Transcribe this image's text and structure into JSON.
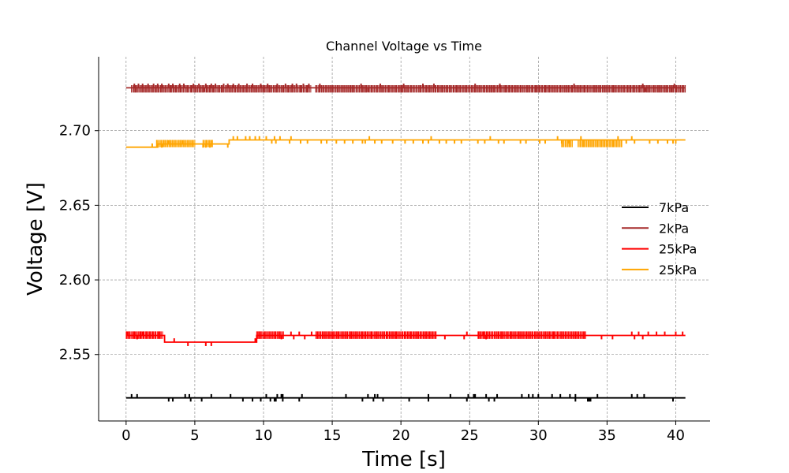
{
  "chart_data": {
    "type": "line",
    "title": "Channel Voltage vs Time",
    "xlabel": "Time [s]",
    "ylabel": "Voltage [V]",
    "xlim": [
      -2,
      42.5
    ],
    "ylim": [
      2.5055,
      2.7495
    ],
    "x_ticks": [
      0,
      5,
      10,
      15,
      20,
      25,
      30,
      35,
      40
    ],
    "x_tick_labels": [
      "0",
      "5",
      "10",
      "15",
      "20",
      "25",
      "30",
      "35",
      "40"
    ],
    "y_ticks": [
      2.55,
      2.6,
      2.65,
      2.7
    ],
    "y_tick_labels": [
      "2.55",
      "2.60",
      "2.65",
      "2.70"
    ],
    "grid": true,
    "legend_position": "right",
    "series": [
      {
        "name": "7kPa",
        "color": "#000000",
        "baseline": [
          [
            0,
            2.521
          ],
          [
            40.7,
            2.521
          ]
        ],
        "spike_delta": 0.0025,
        "spikes_up": [
          0.4,
          0.8,
          4.3,
          4.6,
          6.2,
          7.6,
          10.2,
          11.0,
          11.3,
          11.4,
          12.8,
          16.0,
          17.6,
          18.1,
          18.3,
          22.0,
          23.6,
          24.9,
          25.3,
          25.4,
          26.2,
          27.0,
          28.8,
          29.3,
          29.6,
          30.0,
          31.0,
          31.6,
          32.3,
          32.7,
          34.3,
          36.8,
          37.2,
          37.7
        ],
        "spikes_down": [
          3.1,
          3.4,
          4.7,
          5.5,
          8.5,
          9.2,
          9.8,
          10.5,
          10.8,
          10.9,
          11.4,
          12.6,
          17.2,
          18.0,
          18.7,
          20.6,
          22.0,
          24.8,
          26.4,
          26.8,
          32.7,
          33.6,
          33.7,
          33.8,
          39.8
        ]
      },
      {
        "name": "2kPa",
        "color": "#a52a2a",
        "baseline": [
          [
            0,
            2.7287
          ],
          [
            40.7,
            2.7287
          ]
        ],
        "spike_delta": 0.0028,
        "dense_ranges": [
          [
            0.4,
            13.5
          ],
          [
            13.8,
            40.7
          ]
        ],
        "dense_high": 2.7305,
        "dense_low": 2.7255,
        "spikes_up": [
          0.6,
          0.9,
          1.2,
          1.6,
          2.0,
          2.3,
          2.6,
          3.1,
          3.4,
          3.9,
          4.2,
          4.9,
          5.3,
          5.8,
          6.2,
          6.5,
          7.1,
          7.4,
          7.8,
          8.2,
          8.8,
          9.2,
          9.8,
          10.3,
          11.0,
          11.6,
          12.1,
          12.4,
          12.9,
          13.3,
          14.1,
          17.1,
          18.5,
          20.2,
          21.6,
          22.4,
          25.4,
          27.2,
          32.6,
          37.6,
          39.9
        ],
        "spikes_down": [
          5.7,
          17.6,
          37.8,
          39.7
        ]
      },
      {
        "name": "25kPa",
        "color": "#ff0000",
        "baseline": [
          [
            0,
            2.5628
          ],
          [
            2.8,
            2.5628
          ],
          [
            2.8,
            2.5583
          ],
          [
            9.5,
            2.5583
          ],
          [
            9.5,
            2.5628
          ],
          [
            40.7,
            2.5628
          ]
        ],
        "spike_delta": 0.0026,
        "dense_ranges": [
          [
            0,
            2.7
          ],
          [
            9.5,
            11.5
          ],
          [
            13.8,
            22.6
          ],
          [
            25.6,
            33.5
          ]
        ],
        "dense_high": 2.5655,
        "dense_low": 2.5605,
        "spikes_up": [
          0.1,
          0.6,
          1.2,
          3.5,
          9.4,
          12.0,
          12.6,
          13.5,
          24.8,
          26.0,
          36.8,
          37.3,
          38.0,
          38.6,
          39.2,
          40.0,
          40.5
        ],
        "spikes_down": [
          0.8,
          4.5,
          5.8,
          6.2,
          11.3,
          12.2,
          13.0,
          23.2,
          24.6,
          26.2,
          34.6,
          35.4,
          37.0,
          37.6
        ]
      },
      {
        "name": "25kPa",
        "color": "#ffa500",
        "baseline": [
          [
            0,
            2.6889
          ],
          [
            2.3,
            2.6889
          ],
          [
            2.3,
            2.6911
          ],
          [
            7.5,
            2.6911
          ],
          [
            7.5,
            2.6938
          ],
          [
            40.7,
            2.6938
          ]
        ],
        "spike_delta": 0.0025,
        "dense_ranges": [
          [
            2.2,
            5.0
          ],
          [
            5.6,
            6.3
          ],
          [
            31.7,
            32.5
          ],
          [
            32.9,
            36.1
          ]
        ],
        "dense_high": 2.6938,
        "dense_low": 2.6889,
        "spikes_up": [
          1.9,
          3.1,
          4.1,
          7.8,
          8.1,
          8.7,
          9.0,
          9.4,
          9.7,
          10.2,
          10.8,
          11.2,
          12.0,
          17.7,
          22.2,
          26.5,
          31.4,
          33.1,
          35.8,
          36.8
        ],
        "spikes_down": [
          2.6,
          5.6,
          5.8,
          6.1,
          7.4,
          10.6,
          10.9,
          11.9,
          12.7,
          13.2,
          14.2,
          14.6,
          15.3,
          15.9,
          16.5,
          17.2,
          17.4,
          18.1,
          18.6,
          19.4,
          20.3,
          20.9,
          21.6,
          22.0,
          22.8,
          23.3,
          23.9,
          24.4,
          25.6,
          26.1,
          27.1,
          27.5,
          28.7,
          29.1,
          30.1,
          30.5,
          31.7,
          32.2,
          36.4,
          37.0,
          38.1,
          38.7,
          39.4,
          39.8,
          40.0
        ]
      }
    ]
  }
}
